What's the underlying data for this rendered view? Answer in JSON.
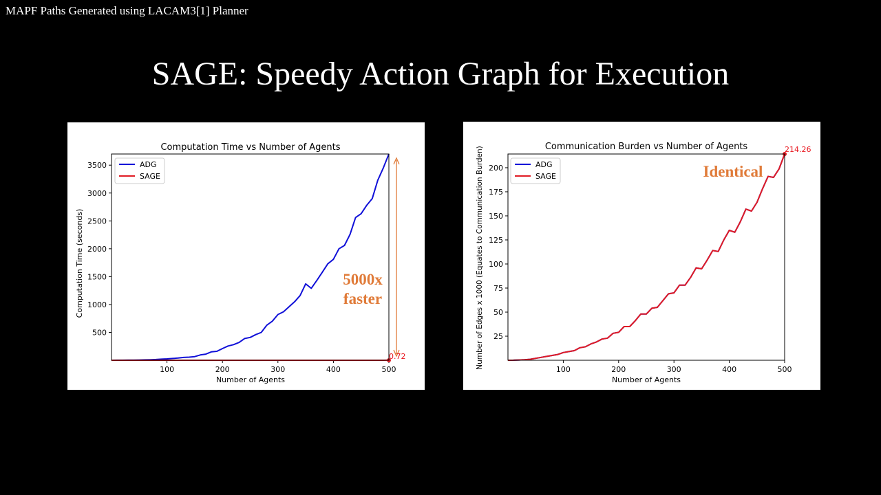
{
  "caption": "MAPF Paths Generated using LACAM3[1] Planner",
  "slide_title": "SAGE: Speedy Action Graph for Execution",
  "colors": {
    "adg": "#1010d8",
    "sage": "#e01b24",
    "annotation": "#e07b39"
  },
  "chart_data": [
    {
      "type": "line",
      "title": "Computation Time vs Number of Agents",
      "xlabel": "Number of Agents",
      "ylabel": "Computation Time (seconds)",
      "xlim": [
        0,
        500
      ],
      "ylim": [
        0,
        3700
      ],
      "xticks": [
        100,
        200,
        300,
        400,
        500
      ],
      "yticks": [
        500,
        1000,
        1500,
        2000,
        2500,
        3000,
        3500
      ],
      "legend_position": "top-left",
      "x": [
        0,
        10,
        20,
        30,
        40,
        50,
        60,
        70,
        80,
        90,
        100,
        110,
        120,
        130,
        140,
        150,
        160,
        170,
        180,
        190,
        200,
        210,
        220,
        230,
        240,
        250,
        260,
        270,
        280,
        290,
        300,
        310,
        320,
        330,
        340,
        350,
        360,
        370,
        380,
        390,
        400,
        410,
        420,
        430,
        440,
        450,
        460,
        470,
        480,
        490,
        500
      ],
      "series": [
        {
          "name": "ADG",
          "values": [
            0,
            1,
            1,
            2,
            3,
            5,
            7,
            10,
            14,
            20,
            25,
            32,
            40,
            50,
            55,
            65,
            95,
            110,
            150,
            160,
            210,
            255,
            280,
            320,
            390,
            410,
            460,
            500,
            630,
            700,
            820,
            870,
            960,
            1050,
            1160,
            1370,
            1290,
            1430,
            1580,
            1730,
            1810,
            2000,
            2060,
            2260,
            2560,
            2630,
            2780,
            2900,
            3230,
            3450,
            3700
          ]
        },
        {
          "name": "SAGE",
          "values": [
            0,
            0,
            0,
            0,
            0,
            0,
            0,
            0,
            0,
            0,
            0,
            0,
            0,
            0,
            0,
            0,
            0,
            0,
            0,
            0,
            0,
            0,
            0,
            0,
            0,
            0,
            0,
            0,
            0,
            0,
            0,
            0,
            0,
            0,
            0,
            0,
            0,
            0,
            0,
            0,
            0,
            0,
            0,
            0,
            0,
            0,
            0,
            0,
            0,
            0,
            0.72
          ]
        }
      ],
      "annotations": {
        "end_value_label": "0.72",
        "speedup_line1": "5000x",
        "speedup_line2": "faster"
      }
    },
    {
      "type": "line",
      "title": "Communication Burden vs Number of Agents",
      "xlabel": "Number of Agents",
      "ylabel": "Number of Edges x 1000 (Equates to Communication Burden)",
      "xlim": [
        0,
        500
      ],
      "ylim": [
        0,
        214.26
      ],
      "xticks": [
        100,
        200,
        300,
        400,
        500
      ],
      "yticks": [
        25,
        50,
        75,
        100,
        125,
        150,
        175,
        200
      ],
      "legend_position": "top-left",
      "x": [
        0,
        10,
        20,
        30,
        40,
        50,
        60,
        70,
        80,
        90,
        100,
        110,
        120,
        130,
        140,
        150,
        160,
        170,
        180,
        190,
        200,
        210,
        220,
        230,
        240,
        250,
        260,
        270,
        280,
        290,
        300,
        310,
        320,
        330,
        340,
        350,
        360,
        370,
        380,
        390,
        400,
        410,
        420,
        430,
        440,
        450,
        460,
        470,
        480,
        490,
        500
      ],
      "series": [
        {
          "name": "ADG",
          "values": [
            0,
            0.1,
            0.3,
            0.6,
            1,
            2,
            3,
            4,
            5,
            6,
            8,
            9,
            10,
            13,
            14,
            17,
            19,
            22,
            23,
            28,
            29,
            35,
            35,
            41,
            48,
            48,
            54,
            55,
            62,
            69,
            70,
            78,
            78,
            86,
            96,
            95,
            104,
            114,
            113,
            125,
            135,
            133,
            144,
            157,
            155,
            164,
            178,
            191,
            190,
            199,
            214.26
          ]
        },
        {
          "name": "SAGE",
          "values": [
            0,
            0.1,
            0.3,
            0.6,
            1,
            2,
            3,
            4,
            5,
            6,
            8,
            9,
            10,
            13,
            14,
            17,
            19,
            22,
            23,
            28,
            29,
            35,
            35,
            41,
            48,
            48,
            54,
            55,
            62,
            69,
            70,
            78,
            78,
            86,
            96,
            95,
            104,
            114,
            113,
            125,
            135,
            133,
            144,
            157,
            155,
            164,
            178,
            191,
            190,
            199,
            214.26
          ]
        }
      ],
      "annotations": {
        "end_value_label": "214.26",
        "identical_label": "Identical"
      }
    }
  ]
}
